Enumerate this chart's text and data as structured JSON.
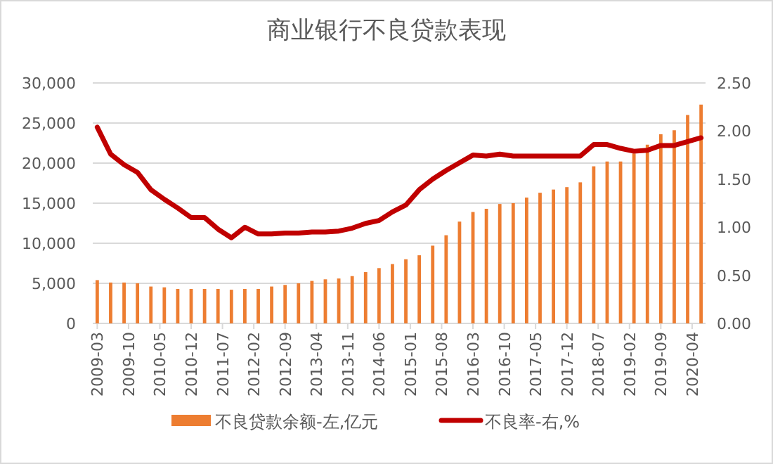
{
  "chart_data": {
    "type": "bar",
    "title": "商业银行不良贷款表现",
    "x": [
      "2009-03",
      "2009-06",
      "2009-09",
      "2009-12",
      "2010-03",
      "2010-06",
      "2010-09",
      "2010-12",
      "2011-03",
      "2011-06",
      "2011-09",
      "2011-12",
      "2012-03",
      "2012-06",
      "2012-09",
      "2012-12",
      "2013-03",
      "2013-06",
      "2013-09",
      "2013-12",
      "2014-03",
      "2014-06",
      "2014-09",
      "2014-12",
      "2015-03",
      "2015-06",
      "2015-09",
      "2015-12",
      "2016-03",
      "2016-06",
      "2016-09",
      "2016-12",
      "2017-03",
      "2017-06",
      "2017-09",
      "2017-12",
      "2018-03",
      "2018-06",
      "2018-09",
      "2018-12",
      "2019-03",
      "2019-06",
      "2019-09",
      "2019-12",
      "2020-03",
      "2020-06"
    ],
    "series": [
      {
        "name": "不良贷款余额-左,亿元",
        "color": "#ed7d31",
        "values": [
          5400,
          5100,
          5100,
          5000,
          4600,
          4500,
          4300,
          4300,
          4300,
          4300,
          4200,
          4300,
          4300,
          4600,
          4800,
          5000,
          5300,
          5500,
          5600,
          5900,
          6400,
          6900,
          7400,
          8000,
          8500,
          9700,
          11000,
          12700,
          13900,
          14300,
          14900,
          15000,
          15700,
          16300,
          16700,
          17000,
          17600,
          19600,
          20200,
          20200,
          21200,
          22300,
          23600,
          24100,
          26000,
          27300
        ]
      },
      {
        "name": "不良率-右,%",
        "type": "line",
        "axis": "y2",
        "color": "#c00000",
        "values": [
          2.04,
          1.76,
          1.65,
          1.57,
          1.39,
          1.29,
          1.2,
          1.1,
          1.1,
          0.98,
          0.89,
          1.0,
          0.93,
          0.93,
          0.94,
          0.94,
          0.95,
          0.95,
          0.96,
          0.99,
          1.04,
          1.07,
          1.16,
          1.23,
          1.39,
          1.5,
          1.59,
          1.67,
          1.75,
          1.74,
          1.76,
          1.74,
          1.74,
          1.74,
          1.74,
          1.74,
          1.74,
          1.86,
          1.86,
          1.82,
          1.79,
          1.8,
          1.85,
          1.85,
          1.89,
          1.93
        ]
      }
    ],
    "xlim": [
      "2009-02",
      "2020-07"
    ],
    "xticks": [
      "2009-03",
      "2009-10",
      "2010-05",
      "2010-12",
      "2011-07",
      "2012-02",
      "2012-09",
      "2013-04",
      "2013-11",
      "2014-06",
      "2015-01",
      "2015-08",
      "2016-03",
      "2016-10",
      "2017-05",
      "2017-12",
      "2018-07",
      "2019-02",
      "2019-09",
      "2020-04"
    ],
    "ylim": [
      0,
      30000
    ],
    "yticks": [
      0,
      {
        "value": 5000,
        "label": "5,000"
      },
      {
        "value": 10000,
        "label": "10,000"
      },
      {
        "value": 15000,
        "label": "15,000"
      },
      {
        "value": 20000,
        "label": "20,000"
      },
      {
        "value": 25000,
        "label": "25,000"
      },
      {
        "value": 30000,
        "label": "30,000"
      }
    ],
    "y2lim": [
      0,
      2.5
    ],
    "y2ticks": [
      {
        "value": 0,
        "label": "0.00"
      },
      {
        "value": 0.5,
        "label": "0.50"
      },
      {
        "value": 1,
        "label": "1.00"
      },
      {
        "value": 1.5,
        "label": "1.50"
      },
      {
        "value": 2,
        "label": "2.00"
      },
      {
        "value": 2.5,
        "label": "2.50"
      }
    ],
    "grid": "y",
    "legend": "bottom",
    "marker": "none",
    "line_style": "solid"
  }
}
